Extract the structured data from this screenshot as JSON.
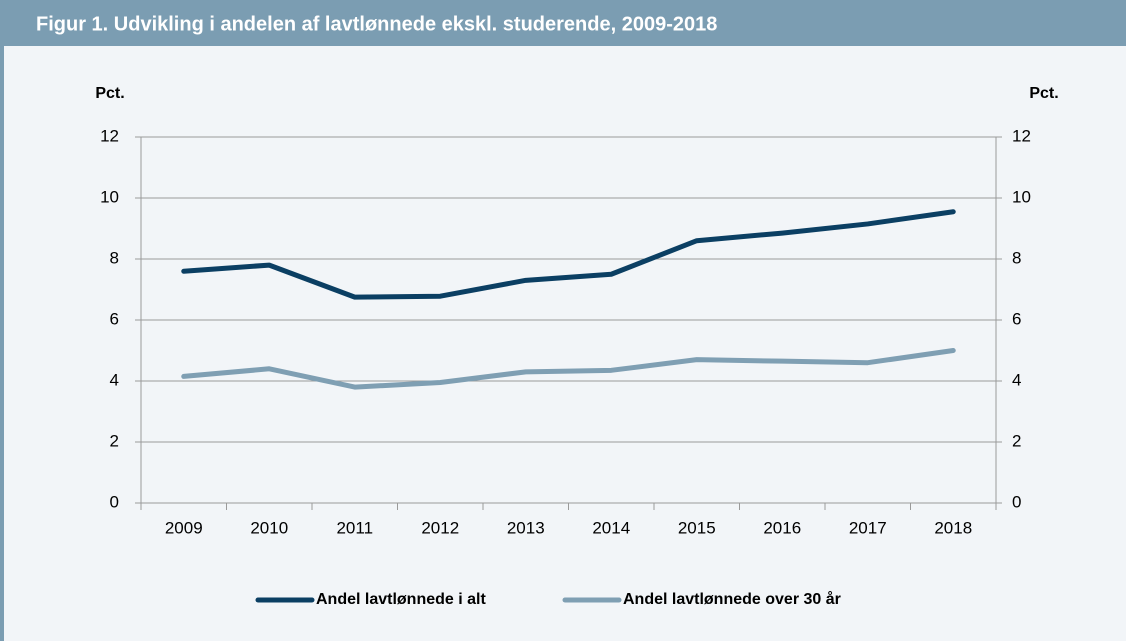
{
  "chart_data": {
    "type": "line",
    "title": "Figur 1. Udvikling i andelen af lavtlønnede ekskl. studerende, 2009-2018",
    "ylabel": "Pct.",
    "y2label": "Pct.",
    "categories": [
      "2009",
      "2010",
      "2011",
      "2012",
      "2013",
      "2014",
      "2015",
      "2016",
      "2017",
      "2018"
    ],
    "series": [
      {
        "name": "Andel lavtlønnede i alt",
        "color": "#0b3f63",
        "values": [
          7.6,
          7.8,
          6.75,
          6.78,
          7.3,
          7.5,
          8.6,
          8.85,
          9.15,
          9.55
        ]
      },
      {
        "name": "Andel lavtlønnede over 30 år",
        "color": "#7f9fb3",
        "values": [
          4.15,
          4.4,
          3.8,
          3.95,
          4.3,
          4.35,
          4.7,
          4.65,
          4.6,
          5.0
        ]
      }
    ],
    "ylim": [
      0,
      12
    ],
    "yticks": [
      0,
      2,
      4,
      6,
      8,
      10,
      12
    ],
    "y2lim": [
      0,
      12
    ],
    "y2ticks": [
      0,
      2,
      4,
      6,
      8,
      10,
      12
    ],
    "grid": true,
    "legend": "bottom"
  }
}
